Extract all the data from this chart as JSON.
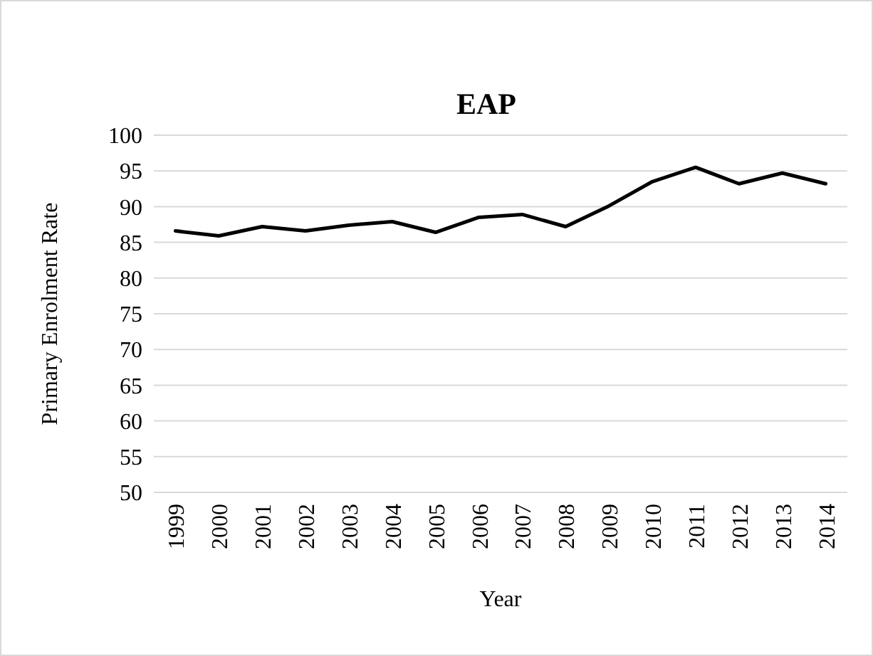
{
  "chart_data": {
    "type": "line",
    "title": "EAP",
    "xlabel": "Year",
    "ylabel": "Primary Enrolment Rate",
    "categories": [
      "1999",
      "2000",
      "2001",
      "2002",
      "2003",
      "2004",
      "2005",
      "2006",
      "2007",
      "2008",
      "2009",
      "2010",
      "2011",
      "2012",
      "2013",
      "2014"
    ],
    "series": [
      {
        "color": "#000000",
        "values": [
          86.6,
          85.9,
          87.2,
          86.6,
          87.4,
          87.9,
          86.4,
          88.5,
          88.9,
          87.2,
          90.1,
          93.5,
          95.5,
          93.2,
          94.7,
          93.2
        ]
      }
    ],
    "ylim": [
      50,
      100
    ],
    "yticks": [
      50,
      55,
      60,
      65,
      70,
      75,
      80,
      85,
      90,
      95,
      100
    ],
    "grid": "y"
  }
}
